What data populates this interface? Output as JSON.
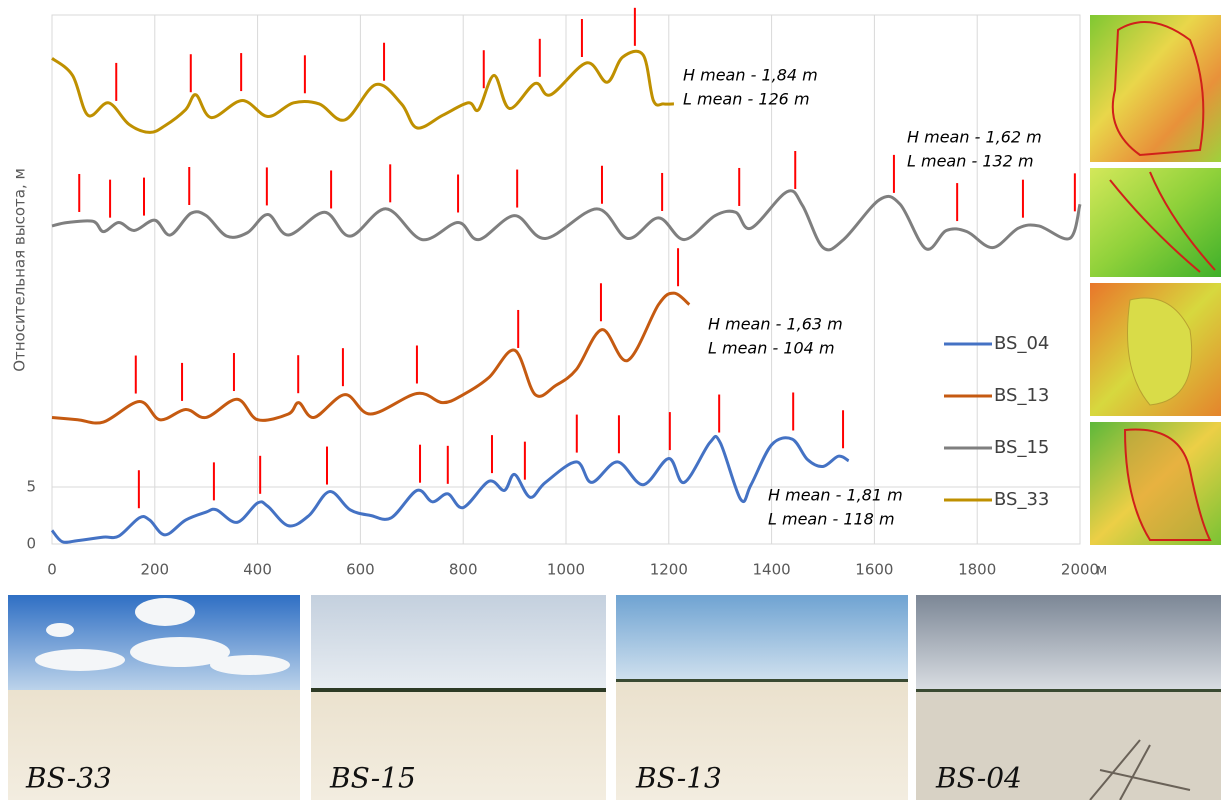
{
  "chart_data": {
    "type": "line",
    "ylabel": "Относительная высота, м",
    "xunit": "м",
    "xlim": [
      0,
      2000
    ],
    "xticks": [
      0,
      200,
      400,
      600,
      800,
      1000,
      1200,
      1400,
      1600,
      1800,
      2000
    ],
    "ylim": [
      0,
      46.4
    ],
    "yticks": [
      0,
      5
    ],
    "grid": true,
    "legend": "right",
    "crest_color": "#ff0000",
    "series": [
      {
        "name": "BS_04",
        "color": "#4472c4",
        "x": [
          0,
          20,
          50,
          100,
          130,
          170,
          190,
          220,
          260,
          300,
          320,
          360,
          400,
          420,
          460,
          500,
          540,
          580,
          620,
          660,
          710,
          740,
          770,
          800,
          850,
          880,
          900,
          930,
          960,
          1020,
          1050,
          1100,
          1150,
          1200,
          1230,
          1280,
          1300,
          1340,
          1360,
          1400,
          1440,
          1470,
          1500,
          1530,
          1550
        ],
        "values": [
          1.2,
          0.2,
          0.3,
          0.6,
          0.7,
          2.3,
          2.1,
          0.8,
          2.1,
          2.8,
          3.0,
          1.9,
          3.6,
          3.3,
          1.6,
          2.5,
          4.6,
          3.0,
          2.5,
          2.3,
          4.7,
          3.7,
          4.4,
          3.2,
          5.5,
          4.7,
          6.1,
          4.1,
          5.4,
          7.2,
          5.4,
          7.2,
          5.2,
          7.5,
          5.4,
          8.9,
          8.9,
          3.9,
          5.2,
          8.7,
          9.2,
          7.4,
          6.8,
          7.7,
          7.3
        ],
        "crest_x": [
          169,
          315,
          405,
          535,
          716,
          770,
          856,
          920,
          1021,
          1103,
          1202,
          1298,
          1442,
          1539
        ],
        "annotation": [
          "H mean - 1,81 m",
          "L mean - 118 m"
        ]
      },
      {
        "name": "BS_13",
        "color": "#c55a11",
        "x": [
          0,
          50,
          100,
          170,
          210,
          260,
          300,
          360,
          400,
          460,
          480,
          510,
          570,
          620,
          710,
          760,
          800,
          850,
          900,
          940,
          980,
          1020,
          1070,
          1120,
          1180,
          1210,
          1240
        ],
        "values": [
          11.1,
          10.9,
          10.7,
          12.5,
          10.9,
          11.8,
          11.1,
          12.7,
          10.9,
          11.4,
          12.4,
          11.1,
          13.1,
          11.4,
          13.2,
          12.4,
          13.1,
          14.6,
          17.0,
          13.1,
          13.9,
          15.3,
          18.8,
          16.1,
          21.0,
          22.0,
          21.0
        ],
        "crest_x": [
          163,
          253,
          354,
          479,
          566,
          710,
          907,
          1068,
          1218
        ],
        "annotation": [
          "H mean - 1,63 m",
          "L mean - 104 m"
        ]
      },
      {
        "name": "BS_15",
        "color": "#7f7f7f",
        "x": [
          0,
          30,
          80,
          100,
          130,
          160,
          200,
          230,
          270,
          300,
          340,
          380,
          420,
          460,
          530,
          580,
          650,
          720,
          790,
          830,
          900,
          960,
          1060,
          1120,
          1180,
          1230,
          1290,
          1330,
          1360,
          1430,
          1460,
          1500,
          1540,
          1610,
          1650,
          1700,
          1740,
          1780,
          1830,
          1880,
          1920,
          1980,
          2000
        ],
        "values": [
          27.9,
          28.2,
          28.3,
          27.4,
          28.2,
          27.5,
          28.4,
          27.1,
          29.0,
          28.8,
          27.0,
          27.3,
          28.9,
          27.1,
          29.1,
          27.0,
          29.4,
          26.7,
          28.2,
          26.7,
          28.8,
          26.8,
          29.4,
          26.8,
          28.6,
          26.7,
          28.8,
          29.1,
          27.7,
          30.9,
          29.7,
          26.0,
          26.7,
          30.2,
          29.8,
          25.9,
          27.5,
          27.4,
          26.0,
          27.7,
          27.9,
          26.8,
          29.8
        ],
        "crest_x": [
          53,
          113,
          179,
          267,
          418,
          543,
          658,
          790,
          905,
          1070,
          1187,
          1337,
          1446,
          1638,
          1761,
          1889,
          1990
        ],
        "annotation": [
          "H mean - 1,62 m",
          "L mean - 132 m"
        ]
      },
      {
        "name": "BS_33",
        "color": "#bf9000",
        "x": [
          0,
          40,
          70,
          110,
          150,
          190,
          220,
          260,
          280,
          310,
          370,
          420,
          470,
          520,
          570,
          630,
          680,
          710,
          760,
          810,
          830,
          860,
          890,
          940,
          970,
          1040,
          1080,
          1110,
          1150,
          1170,
          1190,
          1210
        ],
        "values": [
          42.6,
          41.1,
          37.6,
          38.7,
          36.8,
          36.1,
          36.7,
          38.1,
          39.4,
          37.4,
          38.9,
          37.5,
          38.7,
          38.6,
          37.2,
          40.3,
          38.6,
          36.5,
          37.6,
          38.7,
          38.1,
          41.1,
          38.2,
          40.4,
          39.4,
          42.2,
          40.5,
          42.7,
          42.9,
          38.9,
          38.6,
          38.6
        ],
        "crest_x": [
          125,
          270,
          368,
          492,
          646,
          840,
          949,
          1031,
          1134
        ],
        "annotation": [
          "H mean - 1,84 m",
          "L mean - 126 m"
        ]
      }
    ]
  },
  "photos": [
    {
      "label": "BS-33"
    },
    {
      "label": "BS-15"
    },
    {
      "label": "BS-13"
    },
    {
      "label": "BS-04"
    }
  ]
}
